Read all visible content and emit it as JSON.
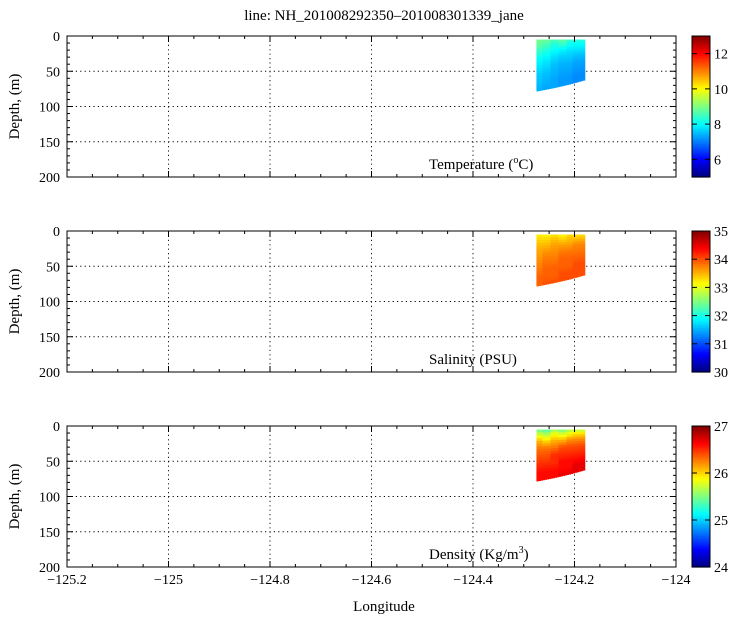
{
  "title": "line: NH_201008292350–201008301339_jane",
  "xlabel": "Longitude",
  "ylabel": "Depth, (m)",
  "chart_data": [
    {
      "type": "heatmap",
      "variable": "Temperature",
      "label_main": "Temperature (",
      "label_sup": "o",
      "label_tail": "C)",
      "xlim": [
        -125.2,
        -124
      ],
      "ylim": [
        200,
        0
      ],
      "x_ticks": [
        -125.2,
        -125,
        -124.8,
        -124.6,
        -124.4,
        -124.2,
        -124
      ],
      "y_ticks": [
        0,
        50,
        100,
        150,
        200
      ],
      "grid": true,
      "colormap": "jet",
      "colorbar": {
        "min": 5,
        "max": 13,
        "ticks": [
          6,
          8,
          10,
          12
        ]
      },
      "data": {
        "lon_range": [
          -124.275,
          -124.18
        ],
        "bottom_depth": [
          [
            -124.275,
            78
          ],
          [
            -124.24,
            73
          ],
          [
            -124.21,
            68
          ],
          [
            -124.18,
            62
          ]
        ],
        "columns": [
          {
            "lon": -124.27,
            "values": [
              9.0,
              8.8,
              8.4,
              8.0,
              7.8,
              7.6,
              7.5,
              7.4
            ]
          },
          {
            "lon": -124.255,
            "values": [
              9.1,
              8.6,
              8.2,
              7.9,
              7.7,
              7.5,
              7.4,
              7.3
            ]
          },
          {
            "lon": -124.24,
            "values": [
              8.9,
              8.3,
              8.0,
              7.7,
              7.5,
              7.4,
              7.3,
              7.3
            ]
          },
          {
            "lon": -124.225,
            "values": [
              9.0,
              8.5,
              7.9,
              7.6,
              7.4,
              7.3,
              7.2,
              7.2
            ]
          },
          {
            "lon": -124.21,
            "values": [
              8.7,
              8.2,
              7.8,
              7.6,
              7.4,
              7.3,
              7.2,
              7.2
            ]
          },
          {
            "lon": -124.195,
            "values": [
              8.6,
              8.1,
              7.8,
              7.5,
              7.3,
              7.2,
              7.1,
              7.1
            ]
          }
        ]
      }
    },
    {
      "type": "heatmap",
      "variable": "Salinity",
      "label_main": "Salinity (PSU)",
      "label_sup": "",
      "label_tail": "",
      "xlim": [
        -125.2,
        -124
      ],
      "ylim": [
        200,
        0
      ],
      "x_ticks": [
        -125.2,
        -125,
        -124.8,
        -124.6,
        -124.4,
        -124.2,
        -124
      ],
      "y_ticks": [
        0,
        50,
        100,
        150,
        200
      ],
      "grid": true,
      "colormap": "jet",
      "colorbar": {
        "min": 30,
        "max": 35,
        "ticks": [
          30,
          31,
          32,
          33,
          34,
          35
        ]
      },
      "data": {
        "lon_range": [
          -124.275,
          -124.18
        ],
        "bottom_depth": [
          [
            -124.275,
            78
          ],
          [
            -124.24,
            73
          ],
          [
            -124.21,
            68
          ],
          [
            -124.18,
            62
          ]
        ],
        "columns": [
          {
            "lon": -124.27,
            "values": [
              33.1,
              33.3,
              33.5,
              33.6,
              33.7,
              33.8,
              33.9,
              33.9
            ]
          },
          {
            "lon": -124.255,
            "values": [
              33.0,
              33.3,
              33.5,
              33.7,
              33.8,
              33.9,
              33.9,
              34.0
            ]
          },
          {
            "lon": -124.24,
            "values": [
              33.1,
              33.4,
              33.6,
              33.7,
              33.8,
              33.9,
              33.9,
              34.0
            ]
          },
          {
            "lon": -124.225,
            "values": [
              33.0,
              33.3,
              33.6,
              33.8,
              33.9,
              33.9,
              34.0,
              34.0
            ]
          },
          {
            "lon": -124.21,
            "values": [
              33.2,
              33.4,
              33.6,
              33.8,
              33.9,
              33.9,
              34.0,
              34.0
            ]
          },
          {
            "lon": -124.195,
            "values": [
              33.1,
              33.4,
              33.7,
              33.8,
              33.9,
              34.0,
              34.0,
              34.0
            ]
          }
        ]
      }
    },
    {
      "type": "heatmap",
      "variable": "Density",
      "label_main": "Density (Kg/m",
      "label_sup": "3",
      "label_tail": ")",
      "xlim": [
        -125.2,
        -124
      ],
      "ylim": [
        200,
        0
      ],
      "x_ticks": [
        -125.2,
        -125,
        -124.8,
        -124.6,
        -124.4,
        -124.2,
        -124
      ],
      "y_ticks": [
        0,
        50,
        100,
        150,
        200
      ],
      "grid": true,
      "colormap": "jet",
      "colorbar": {
        "min": 24,
        "max": 27,
        "ticks": [
          24,
          25,
          26,
          27
        ]
      },
      "data": {
        "lon_range": [
          -124.275,
          -124.18
        ],
        "bottom_depth": [
          [
            -124.275,
            78
          ],
          [
            -124.24,
            73
          ],
          [
            -124.21,
            68
          ],
          [
            -124.18,
            62
          ]
        ],
        "columns": [
          {
            "lon": -124.27,
            "values": [
              25.2,
              25.7,
              26.1,
              26.3,
              26.4,
              26.5,
              26.6,
              26.6
            ]
          },
          {
            "lon": -124.255,
            "values": [
              25.1,
              25.6,
              26.0,
              26.3,
              26.4,
              26.5,
              26.6,
              26.6
            ]
          },
          {
            "lon": -124.24,
            "values": [
              25.3,
              25.8,
              26.1,
              26.3,
              26.5,
              26.5,
              26.6,
              26.6
            ]
          },
          {
            "lon": -124.225,
            "values": [
              25.2,
              25.7,
              26.1,
              26.4,
              26.5,
              26.6,
              26.6,
              26.7
            ]
          },
          {
            "lon": -124.21,
            "values": [
              25.4,
              25.8,
              26.2,
              26.4,
              26.5,
              26.6,
              26.6,
              26.7
            ]
          },
          {
            "lon": -124.195,
            "values": [
              25.3,
              25.9,
              26.2,
              26.4,
              26.5,
              26.6,
              26.7,
              26.7
            ]
          }
        ]
      }
    }
  ]
}
